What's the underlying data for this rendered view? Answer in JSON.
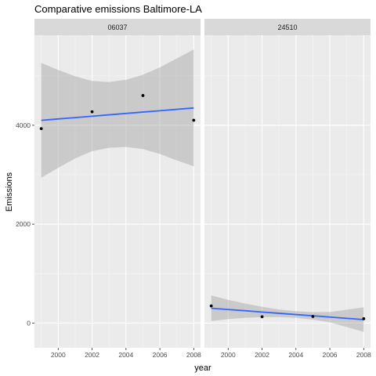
{
  "chart_data": {
    "type": "scatter",
    "title": "Comparative emissions Baltimore-LA",
    "xlabel": "year",
    "ylabel": "Emissions",
    "xlim": [
      1998.6,
      2008.4
    ],
    "ylim": [
      -500,
      5820
    ],
    "x_ticks": [
      2000,
      2002,
      2004,
      2006,
      2008
    ],
    "y_ticks": [
      0,
      2000,
      4000
    ],
    "grid": true,
    "facets": [
      {
        "label": "06037",
        "points": [
          {
            "x": 1999,
            "y": 3931
          },
          {
            "x": 2002,
            "y": 4274
          },
          {
            "x": 2005,
            "y": 4601
          },
          {
            "x": 2008,
            "y": 4101
          }
        ],
        "fit": {
          "x": [
            1999,
            2000,
            2001,
            2002,
            2003,
            2004,
            2005,
            2006,
            2007,
            2008
          ],
          "y": [
            4100,
            4128,
            4155,
            4183,
            4211,
            4239,
            4267,
            4294,
            4322,
            4350
          ],
          "lower": [
            2940,
            3140,
            3330,
            3475,
            3545,
            3560,
            3520,
            3420,
            3290,
            3170
          ],
          "upper": [
            5260,
            5120,
            4990,
            4895,
            4875,
            4920,
            5020,
            5170,
            5350,
            5530
          ]
        }
      },
      {
        "label": "24510",
        "points": [
          {
            "x": 1999,
            "y": 347
          },
          {
            "x": 2002,
            "y": 128
          },
          {
            "x": 2005,
            "y": 134
          },
          {
            "x": 2008,
            "y": 88
          }
        ],
        "fit": {
          "x": [
            1999,
            2000,
            2001,
            2002,
            2003,
            2004,
            2005,
            2006,
            2007,
            2008
          ],
          "y": [
            300,
            274,
            249,
            223,
            198,
            172,
            147,
            121,
            96,
            70
          ],
          "lower": [
            40,
            80,
            105,
            120,
            120,
            105,
            70,
            15,
            -80,
            -180
          ],
          "upper": [
            560,
            470,
            395,
            330,
            275,
            240,
            220,
            225,
            270,
            320
          ]
        }
      }
    ],
    "colors": {
      "panel_bg": "#ebebeb",
      "grid_major": "#ffffff",
      "grid_minor": "#f5f5f5",
      "strip_bg": "#d9d9d9",
      "fit_line": "#3366ff",
      "ribbon": "#999999",
      "point": "#000000"
    }
  }
}
